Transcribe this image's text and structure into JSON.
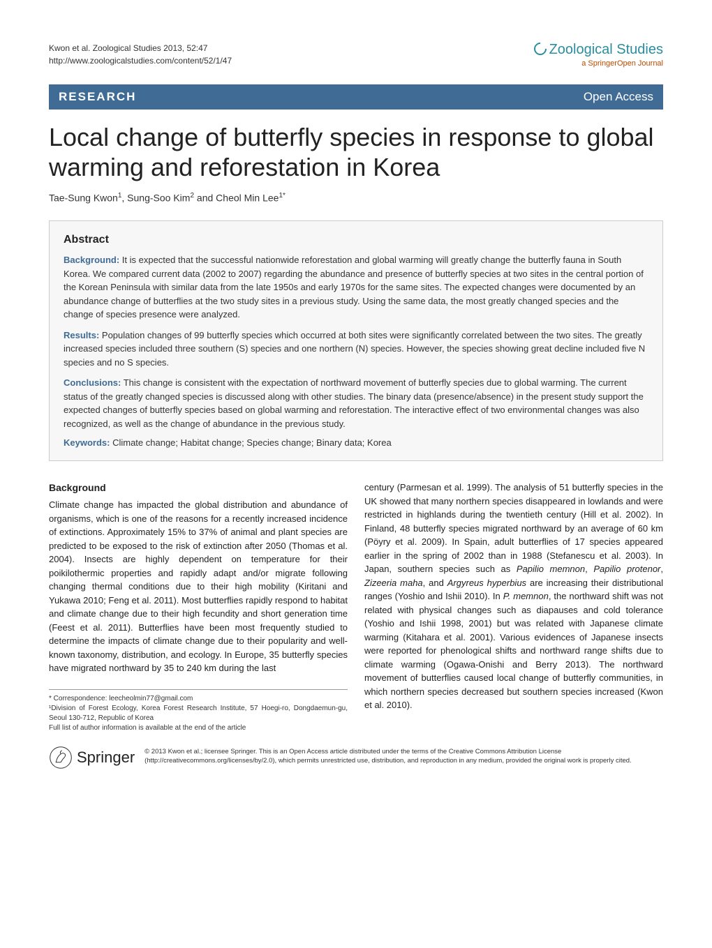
{
  "header": {
    "citation": "Kwon et al. Zoological Studies 2013, 52:47",
    "url": "http://www.zoologicalstudies.com/content/52/1/47",
    "journal_name": "Zoological Studies",
    "journal_tagline": "a SpringerOpen Journal"
  },
  "banner": {
    "left": "RESEARCH",
    "right": "Open Access"
  },
  "title": "Local change of butterfly species in response to global warming and reforestation in Korea",
  "authors_html": "Tae-Sung Kwon<sup>1</sup>, Sung-Soo Kim<sup>2</sup> and Cheol Min Lee<sup>1*</sup>",
  "abstract": {
    "heading": "Abstract",
    "background_label": "Background:",
    "background_text": " It is expected that the successful nationwide reforestation and global warming will greatly change the butterfly fauna in South Korea. We compared current data (2002 to 2007) regarding the abundance and presence of butterfly species at two sites in the central portion of the Korean Peninsula with similar data from the late 1950s and early 1970s for the same sites. The expected changes were documented by an abundance change of butterflies at the two study sites in a previous study. Using the same data, the most greatly changed species and the change of species presence were analyzed.",
    "results_label": "Results:",
    "results_text": " Population changes of 99 butterfly species which occurred at both sites were significantly correlated between the two sites. The greatly increased species included three southern (S) species and one northern (N) species. However, the species showing great decline included five N species and no S species.",
    "conclusions_label": "Conclusions:",
    "conclusions_text": " This change is consistent with the expectation of northward movement of butterfly species due to global warming. The current status of the greatly changed species is discussed along with other studies. The binary data (presence/absence) in the present study support the expected changes of butterfly species based on global warming and reforestation. The interactive effect of two environmental changes was also recognized, as well as the change of abundance in the previous study.",
    "keywords_label": "Keywords:",
    "keywords_text": " Climate change; Habitat change; Species change; Binary data; Korea"
  },
  "body": {
    "section_heading": "Background",
    "col1_text": "Climate change has impacted the global distribution and abundance of organisms, which is one of the reasons for a recently increased incidence of extinctions. Approximately 15% to 37% of animal and plant species are predicted to be exposed to the risk of extinction after 2050 (Thomas et al. 2004). Insects are highly dependent on temperature for their poikilothermic properties and rapidly adapt and/or migrate following changing thermal conditions due to their high mobility (Kiritani and Yukawa 2010; Feng et al. 2011). Most butterflies rapidly respond to habitat and climate change due to their high fecundity and short generation time (Feest et al. 2011). Butterflies have been most frequently studied to determine the impacts of climate change due to their popularity and well-known taxonomy, distribution, and ecology. In Europe, 35 butterfly species have migrated northward by 35 to 240 km during the last",
    "col2_text_parts": [
      {
        "plain": "century (Parmesan et al. 1999). The analysis of 51 butterfly species in the UK showed that many northern species disappeared in lowlands and were restricted in highlands during the twentieth century (Hill et al. 2002). In Finland, 48 butterfly species migrated northward by an average of 60 km (Pöyry et al. 2009). In Spain, adult butterflies of 17 species appeared earlier in the spring of 2002 than in 1988 (Stefanescu et al. 2003). In Japan, southern species such as "
      },
      {
        "italic": "Papilio memnon"
      },
      {
        "plain": ", "
      },
      {
        "italic": "Papilio protenor"
      },
      {
        "plain": ", "
      },
      {
        "italic": "Zizeeria maha"
      },
      {
        "plain": ", and "
      },
      {
        "italic": "Argyreus hyperbius"
      },
      {
        "plain": " are increasing their distributional ranges (Yoshio and Ishii 2010). In "
      },
      {
        "italic": "P. memnon"
      },
      {
        "plain": ", the northward shift was not related with physical changes such as diapauses and cold tolerance (Yoshio and Ishii 1998, 2001) but was related with Japanese climate warming (Kitahara et al. 2001). Various evidences of Japanese insects were reported for phenological shifts and northward range shifts due to climate warming (Ogawa-Onishi and Berry 2013). The northward movement of butterflies caused local change of butterfly communities, in which northern species decreased but southern species increased (Kwon et al. 2010)."
      }
    ]
  },
  "footer": {
    "correspondence": "* Correspondence: leecheolmin77@gmail.com",
    "affiliation1": "¹Division of Forest Ecology, Korea Forest Research Institute, 57 Hoegi-ro, Dongdaemun-gu, Seoul 130-712, Republic of Korea",
    "full_list": "Full list of author information is available at the end of the article",
    "springer": "Springer",
    "license": "© 2013 Kwon et al.; licensee Springer. This is an Open Access article distributed under the terms of the Creative Commons Attribution License (http://creativecommons.org/licenses/by/2.0), which permits unrestricted use, distribution, and reproduction in any medium, provided the original work is properly cited."
  },
  "colors": {
    "banner_bg": "#3f6b94",
    "journal_teal": "#2a8e9e",
    "tagline_orange": "#b94a00"
  }
}
